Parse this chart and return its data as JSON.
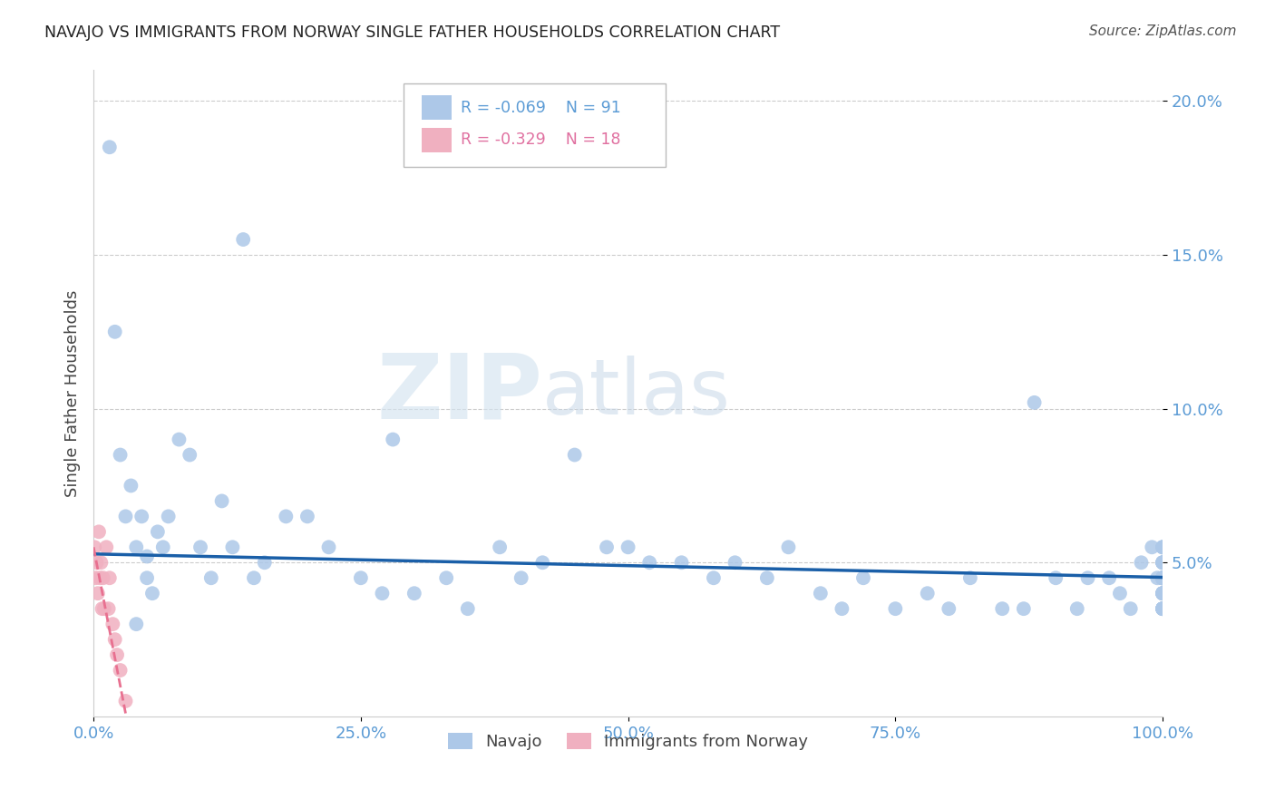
{
  "title": "NAVAJO VS IMMIGRANTS FROM NORWAY SINGLE FATHER HOUSEHOLDS CORRELATION CHART",
  "source": "Source: ZipAtlas.com",
  "ylabel": "Single Father Households",
  "navajo_R": -0.069,
  "navajo_N": 91,
  "norway_R": -0.329,
  "norway_N": 18,
  "navajo_color": "#adc8e8",
  "norway_color": "#f0b0c0",
  "navajo_line_color": "#1a5fa8",
  "norway_line_color": "#e87090",
  "navajo_x": [
    1.5,
    2.0,
    2.5,
    3.0,
    3.5,
    4.0,
    4.0,
    4.5,
    5.0,
    5.0,
    5.5,
    6.0,
    6.5,
    7.0,
    8.0,
    9.0,
    10.0,
    11.0,
    12.0,
    13.0,
    14.0,
    15.0,
    16.0,
    18.0,
    20.0,
    22.0,
    25.0,
    27.0,
    28.0,
    30.0,
    33.0,
    35.0,
    38.0,
    40.0,
    42.0,
    45.0,
    48.0,
    50.0,
    52.0,
    55.0,
    58.0,
    60.0,
    63.0,
    65.0,
    68.0,
    70.0,
    72.0,
    75.0,
    78.0,
    80.0,
    82.0,
    85.0,
    87.0,
    88.0,
    90.0,
    92.0,
    93.0,
    95.0,
    96.0,
    97.0,
    98.0,
    99.0,
    99.5,
    100.0,
    100.0,
    100.0,
    100.0,
    100.0,
    100.0,
    100.0,
    100.0,
    100.0,
    100.0,
    100.0,
    100.0,
    100.0,
    100.0,
    100.0,
    100.0,
    100.0,
    100.0,
    100.0,
    100.0,
    100.0,
    100.0,
    100.0,
    100.0,
    100.0,
    100.0,
    100.0,
    100.0
  ],
  "navajo_y": [
    18.5,
    12.5,
    8.5,
    6.5,
    7.5,
    5.5,
    3.0,
    6.5,
    4.5,
    5.2,
    4.0,
    6.0,
    5.5,
    6.5,
    9.0,
    8.5,
    5.5,
    4.5,
    7.0,
    5.5,
    15.5,
    4.5,
    5.0,
    6.5,
    6.5,
    5.5,
    4.5,
    4.0,
    9.0,
    4.0,
    4.5,
    3.5,
    5.5,
    4.5,
    5.0,
    8.5,
    5.5,
    5.5,
    5.0,
    5.0,
    4.5,
    5.0,
    4.5,
    5.5,
    4.0,
    3.5,
    4.5,
    3.5,
    4.0,
    3.5,
    4.5,
    3.5,
    3.5,
    10.2,
    4.5,
    3.5,
    4.5,
    4.5,
    4.0,
    3.5,
    5.0,
    5.5,
    4.5,
    4.5,
    4.0,
    5.0,
    4.5,
    3.5,
    4.0,
    4.5,
    5.5,
    4.5,
    5.0,
    4.5,
    3.5,
    4.5,
    5.0,
    4.0,
    3.5,
    4.5,
    5.5,
    4.5,
    3.5,
    4.0,
    3.5,
    4.0,
    5.0,
    3.5,
    4.5,
    5.5,
    4.0
  ],
  "norway_x": [
    0.1,
    0.2,
    0.3,
    0.4,
    0.5,
    0.6,
    0.7,
    0.8,
    0.9,
    1.0,
    1.2,
    1.4,
    1.5,
    1.8,
    2.0,
    2.2,
    2.5,
    3.0
  ],
  "norway_y": [
    5.5,
    4.5,
    5.0,
    4.0,
    6.0,
    4.5,
    5.0,
    3.5,
    4.5,
    3.5,
    5.5,
    3.5,
    4.5,
    3.0,
    2.5,
    2.0,
    1.5,
    0.5
  ],
  "watermark_zip": "ZIP",
  "watermark_atlas": "atlas",
  "background_color": "#ffffff",
  "xlim": [
    0,
    100
  ],
  "ylim": [
    0,
    21
  ],
  "yticks": [
    5.0,
    10.0,
    15.0,
    20.0
  ],
  "ytick_labels": [
    "5.0%",
    "10.0%",
    "15.0%",
    "20.0%"
  ],
  "xticks": [
    0,
    25,
    50,
    75,
    100
  ],
  "xtick_labels": [
    "0.0%",
    "25.0%",
    "50.0%",
    "75.0%",
    "100.0%"
  ],
  "grid_color": "#cccccc",
  "tick_color": "#5b9bd5",
  "title_color": "#222222",
  "source_color": "#555555",
  "ylabel_color": "#444444"
}
